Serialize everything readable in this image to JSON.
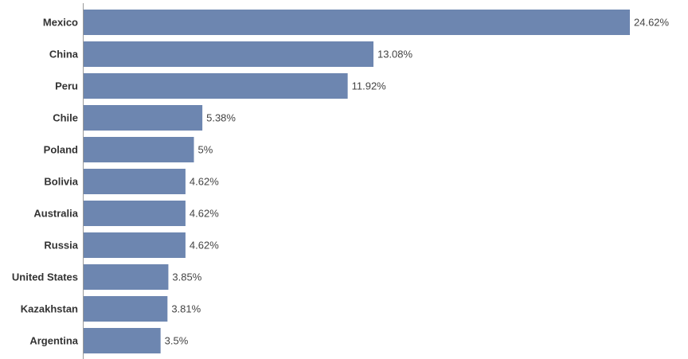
{
  "chart_data": {
    "type": "bar",
    "orientation": "horizontal",
    "categories": [
      "Mexico",
      "China",
      "Peru",
      "Chile",
      "Poland",
      "Bolivia",
      "Australia",
      "Russia",
      "United States",
      "Kazakhstan",
      "Argentina"
    ],
    "values": [
      24.62,
      13.08,
      11.92,
      5.38,
      5,
      4.62,
      4.62,
      4.62,
      3.85,
      3.81,
      3.5
    ],
    "value_labels": [
      "24.62%",
      "13.08%",
      "11.92%",
      "5.38%",
      "5%",
      "4.62%",
      "4.62%",
      "4.62%",
      "3.85%",
      "3.81%",
      "3.5%"
    ],
    "title": "",
    "xlabel": "",
    "ylabel": "",
    "grid": false,
    "bar_color": "#6d86b0",
    "axis_color": "#999999"
  }
}
